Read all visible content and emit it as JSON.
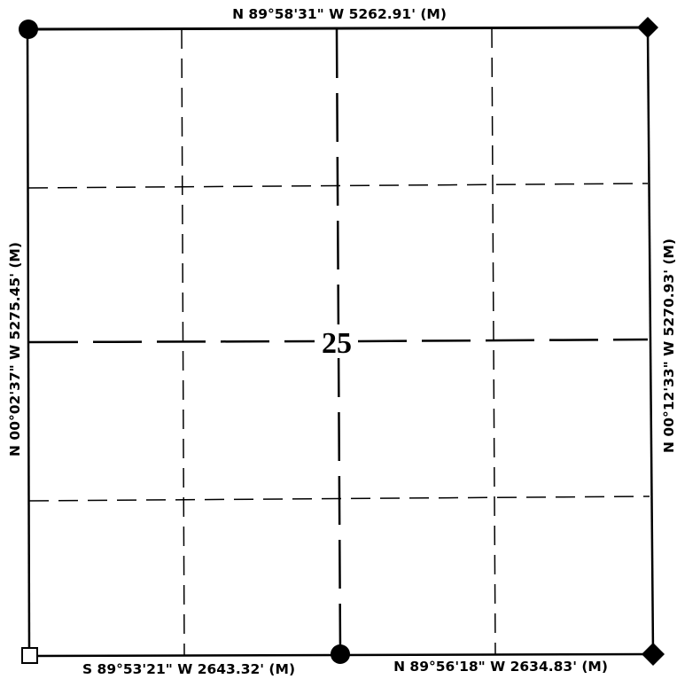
{
  "section_number": "25",
  "boundaries": {
    "north": "N 89°58'31\" W  5262.91' (M)",
    "south_west_half": "S 89°53'21\" W  2643.32' (M)",
    "south_east_half": "N 89°56'18\" W  2634.83' (M)",
    "west": "N 00°02'37\" W  5275.45' (M)",
    "east": "N 00°12'33\" W  5270.93' (M)"
  },
  "corner_markers": {
    "northwest": "filled-circle",
    "northeast": "filled-diamond",
    "southwest": "open-square",
    "south_quarter": "filled-circle",
    "southeast": "filled-diamond"
  }
}
